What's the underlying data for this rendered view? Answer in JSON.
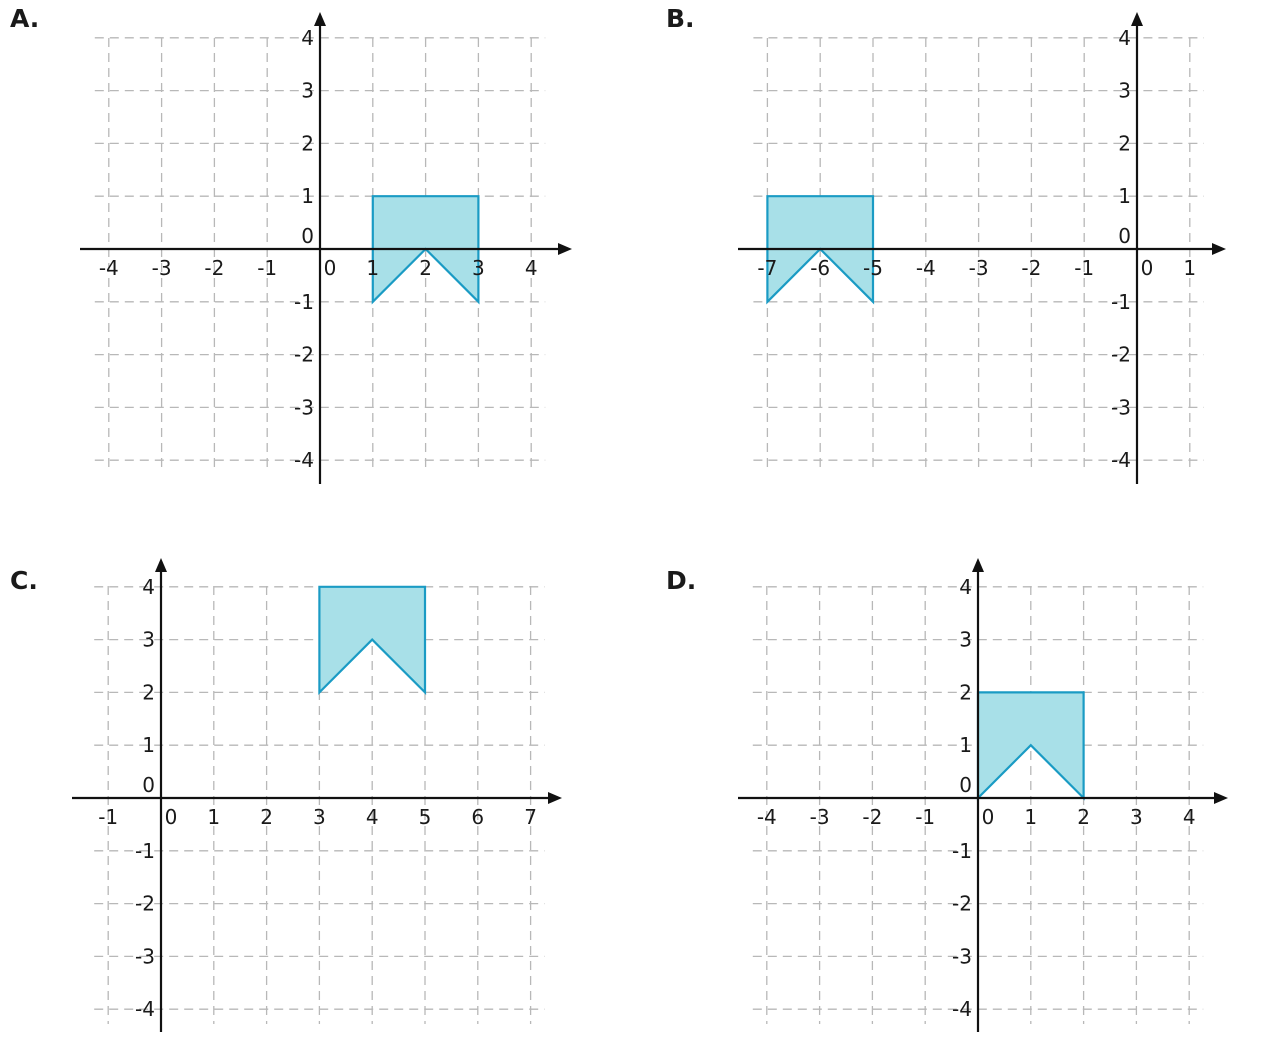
{
  "colors": {
    "fill": "#a8e0e8",
    "stroke": "#1a9bc4",
    "axis": "#111111",
    "grid": "#b8b8b8"
  },
  "panels": [
    {
      "label": "A.",
      "xmin": -4,
      "xmax": 4,
      "ymin": -4,
      "ymax": 4,
      "shape": [
        [
          1,
          1
        ],
        [
          3,
          1
        ],
        [
          3,
          -1
        ],
        [
          2,
          0
        ],
        [
          1,
          -1
        ]
      ]
    },
    {
      "label": "B.",
      "xmin": -7,
      "xmax": 1,
      "ymin": -4,
      "ymax": 4,
      "shape": [
        [
          -7,
          1
        ],
        [
          -5,
          1
        ],
        [
          -5,
          -1
        ],
        [
          -6,
          0
        ],
        [
          -7,
          -1
        ]
      ]
    },
    {
      "label": "C.",
      "xmin": -1,
      "xmax": 7,
      "ymin": -4,
      "ymax": 4,
      "shape": [
        [
          3,
          4
        ],
        [
          5,
          4
        ],
        [
          5,
          2
        ],
        [
          4,
          3
        ],
        [
          3,
          2
        ]
      ]
    },
    {
      "label": "D.",
      "xmin": -4,
      "xmax": 4,
      "ymin": -4,
      "ymax": 4,
      "shape": [
        [
          0,
          2
        ],
        [
          2,
          2
        ],
        [
          2,
          0
        ],
        [
          1,
          1
        ],
        [
          0,
          0
        ]
      ]
    }
  ],
  "chart_data": [
    {
      "type": "scatter",
      "title": "A.",
      "xlim": [
        -4,
        4
      ],
      "ylim": [
        -4,
        4
      ],
      "grid": true,
      "x_ticks": [
        -4,
        -3,
        -2,
        -1,
        0,
        1,
        2,
        3,
        4
      ],
      "y_ticks": [
        -4,
        -3,
        -2,
        -1,
        0,
        1,
        2,
        3,
        4
      ],
      "polygon": [
        [
          1,
          1
        ],
        [
          3,
          1
        ],
        [
          3,
          -1
        ],
        [
          2,
          0
        ],
        [
          1,
          -1
        ]
      ]
    },
    {
      "type": "scatter",
      "title": "B.",
      "xlim": [
        -7,
        1
      ],
      "ylim": [
        -4,
        4
      ],
      "grid": true,
      "x_ticks": [
        -7,
        -6,
        -5,
        -4,
        -3,
        -2,
        -1,
        0,
        1
      ],
      "y_ticks": [
        -4,
        -3,
        -2,
        -1,
        0,
        1,
        2,
        3,
        4
      ],
      "polygon": [
        [
          -7,
          1
        ],
        [
          -5,
          1
        ],
        [
          -5,
          -1
        ],
        [
          -6,
          0
        ],
        [
          -7,
          -1
        ]
      ]
    },
    {
      "type": "scatter",
      "title": "C.",
      "xlim": [
        -1,
        7
      ],
      "ylim": [
        -4,
        4
      ],
      "grid": true,
      "x_ticks": [
        -1,
        0,
        1,
        2,
        3,
        4,
        5,
        6,
        7
      ],
      "y_ticks": [
        -4,
        -3,
        -2,
        -1,
        0,
        1,
        2,
        3,
        4
      ],
      "polygon": [
        [
          3,
          4
        ],
        [
          5,
          4
        ],
        [
          5,
          2
        ],
        [
          4,
          3
        ],
        [
          3,
          2
        ]
      ]
    },
    {
      "type": "scatter",
      "title": "D.",
      "xlim": [
        -4,
        4
      ],
      "ylim": [
        -4,
        4
      ],
      "grid": true,
      "x_ticks": [
        -4,
        -3,
        -2,
        -1,
        0,
        1,
        2,
        3,
        4
      ],
      "y_ticks": [
        -4,
        -3,
        -2,
        -1,
        0,
        1,
        2,
        3,
        4
      ],
      "polygon": [
        [
          0,
          2
        ],
        [
          2,
          2
        ],
        [
          2,
          0
        ],
        [
          1,
          1
        ],
        [
          0,
          0
        ]
      ]
    }
  ]
}
